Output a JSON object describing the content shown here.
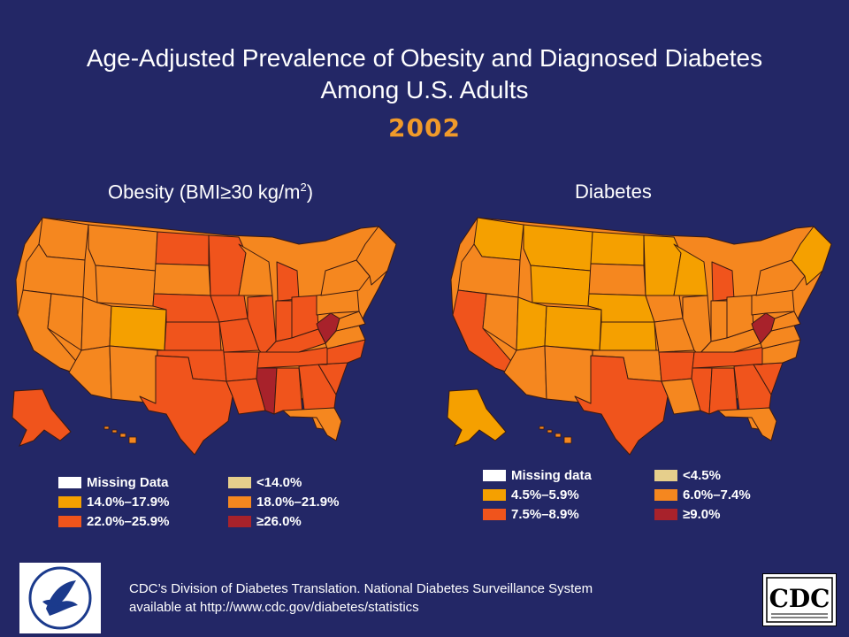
{
  "title_line1": "Age-Adjusted Prevalence of Obesity and Diagnosed Diabetes",
  "title_line2": "Among U.S. Adults",
  "year": "2002",
  "colors": {
    "background": "#232766",
    "missing": "#ffffff",
    "lowest": "#e6cf8c",
    "level1": "#f5a000",
    "level2": "#f5871f",
    "level3": "#f0541c",
    "level4": "#a8222b",
    "year_text": "#f09a2a"
  },
  "obesity": {
    "title_prefix": "Obesity (BMI≥30 kg/m",
    "title_sup": "2",
    "title_suffix": ")",
    "legend": [
      {
        "label": "Missing Data",
        "color": "#ffffff"
      },
      {
        "label": "14.0%–17.9%",
        "color": "#f5a000"
      },
      {
        "label": "22.0%–25.9%",
        "color": "#f0541c"
      },
      {
        "label": "<14.0%",
        "color": "#e6cf8c"
      },
      {
        "label": "18.0%–21.9%",
        "color": "#f5871f"
      },
      {
        "label": "≥26.0%",
        "color": "#a8222b"
      }
    ]
  },
  "diabetes": {
    "title": "Diabetes",
    "legend": [
      {
        "label": "Missing data",
        "color": "#ffffff"
      },
      {
        "label": "4.5%–5.9%",
        "color": "#f5a000"
      },
      {
        "label": "7.5%–8.9%",
        "color": "#f0541c"
      },
      {
        "label": "<4.5%",
        "color": "#e6cf8c"
      },
      {
        "label": "6.0%–7.4%",
        "color": "#f5871f"
      },
      {
        "label": "≥9.0%",
        "color": "#a8222b"
      }
    ]
  },
  "footer": {
    "line1": "CDC’s Division of Diabetes Translation. National Diabetes Surveillance System",
    "line2": "available at http://www.cdc.gov/diabetes/statistics"
  },
  "logos": {
    "left": "hhs-eagle-logo",
    "right_text": "CDC"
  }
}
